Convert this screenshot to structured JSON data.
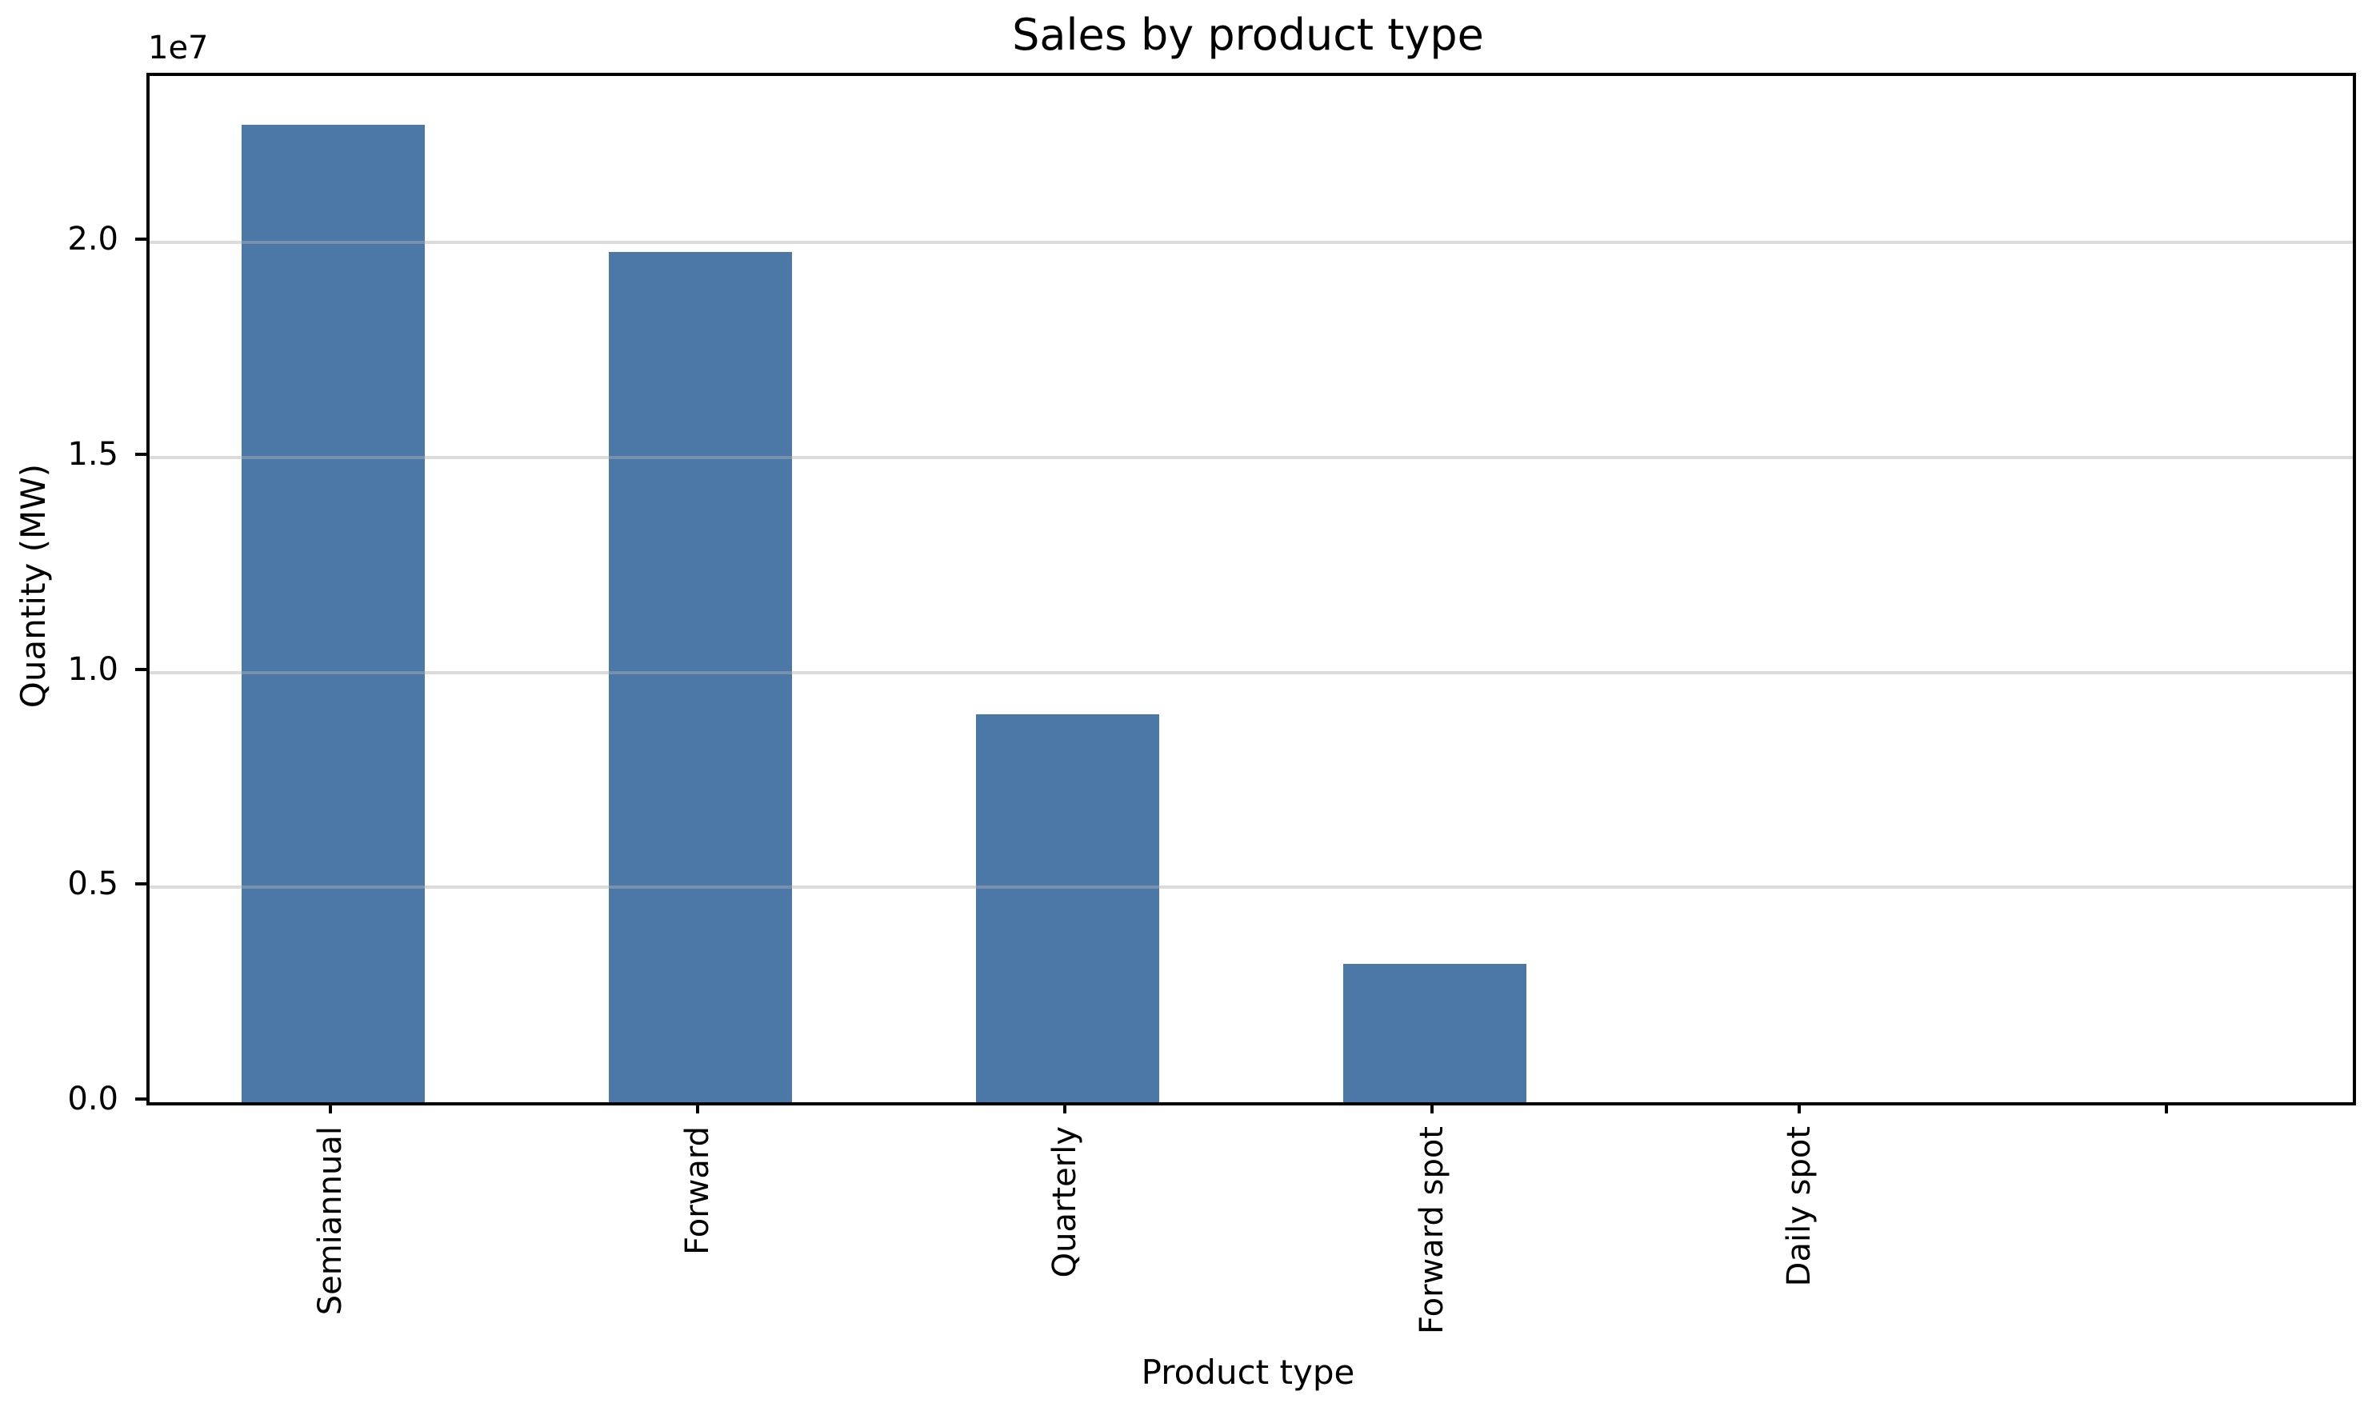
{
  "chart_data": {
    "type": "bar",
    "title": "Sales by product type",
    "xlabel": "Product type",
    "ylabel": "Quantity (MW)",
    "categories": [
      "Semiannual",
      "Forward",
      "Quarterly",
      "Forward spot",
      "Daily spot",
      ""
    ],
    "values": [
      22740000,
      19780000,
      9020000,
      3220000,
      0,
      0
    ],
    "ylim": [
      0,
      23880000
    ],
    "yticks": {
      "values": [
        0,
        5000000,
        10000000,
        15000000,
        20000000
      ],
      "labels": [
        "0.0",
        "0.5",
        "1.0",
        "1.5",
        "2.0"
      ],
      "offset_label": "1e7"
    },
    "bar_width_fraction": 0.5,
    "bar_color": "#4C78A8",
    "grid": true,
    "grid_color": "rgba(176,176,176,0.45)",
    "legend_position": "none",
    "x_tick_label_rotation_deg": 90
  }
}
